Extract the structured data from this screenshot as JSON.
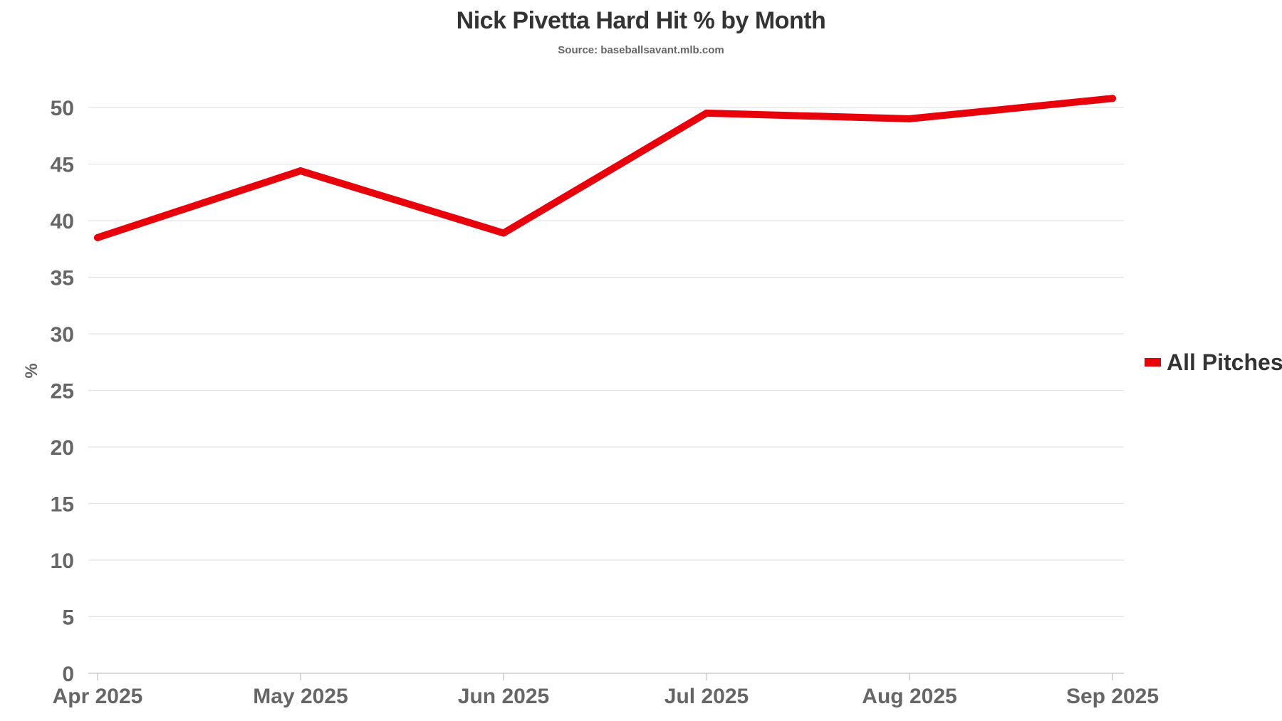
{
  "chart_data": {
    "type": "line",
    "title": "Nick Pivetta Hard Hit % by Month",
    "subtitle": "Source: baseballsavant.mlb.com",
    "xlabel": "",
    "ylabel": "%",
    "categories": [
      "Apr 2025",
      "May 2025",
      "Jun 2025",
      "Jul 2025",
      "Aug 2025",
      "Sep 2025"
    ],
    "series": [
      {
        "name": "All Pitches",
        "values": [
          38.5,
          44.4,
          38.9,
          49.5,
          49.0,
          50.8
        ],
        "color": "#e8000b"
      }
    ],
    "ylim": [
      0,
      52
    ],
    "yticks": [
      "0",
      "5",
      "10",
      "15",
      "20",
      "25",
      "30",
      "35",
      "40",
      "45",
      "50"
    ],
    "grid": true,
    "legend_position": "right"
  }
}
